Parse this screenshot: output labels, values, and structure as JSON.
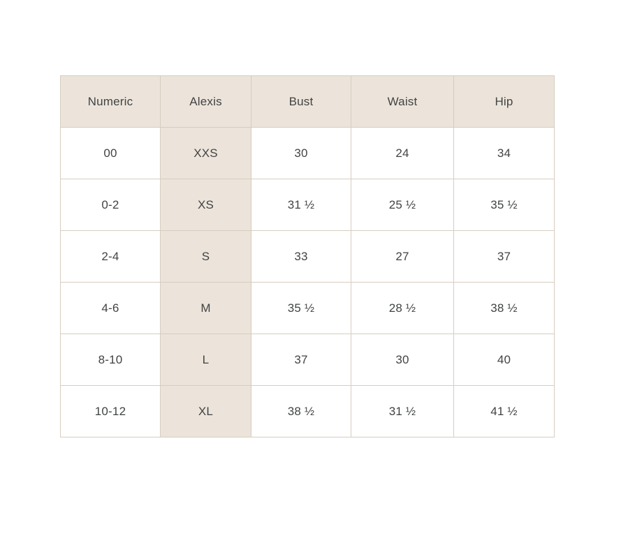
{
  "size_chart": {
    "columns": [
      "Numeric",
      "Alexis",
      "Bust",
      "Waist",
      "Hip"
    ],
    "highlight_column_index": 1,
    "rows": [
      [
        "00",
        "XXS",
        "30",
        "24",
        "34"
      ],
      [
        "0-2",
        "XS",
        "31 ½",
        "25 ½",
        "35 ½"
      ],
      [
        "2-4",
        "S",
        "33",
        "27",
        "37"
      ],
      [
        "4-6",
        "M",
        "35 ½",
        "28 ½",
        "38 ½"
      ],
      [
        "8-10",
        "L",
        "37",
        "30",
        "40"
      ],
      [
        "10-12",
        "XL",
        "38 ½",
        "31 ½",
        "41 ½"
      ]
    ],
    "colors": {
      "header_bg": "#ece4da",
      "highlight_col_bg": "#ece4da",
      "border": "#d6cdc1",
      "text": "#414344",
      "cell_bg": "#ffffff"
    }
  }
}
